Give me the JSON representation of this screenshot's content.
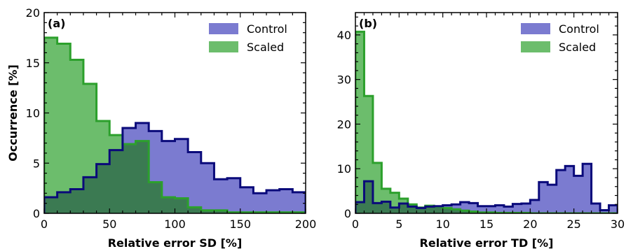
{
  "colors": {
    "control_fill": "#7b7bd0",
    "control_line": "#0a0a7a",
    "scaled_fill": "#6cbd6c",
    "scaled_line": "#2ca02c",
    "overlap_fill": "#3b7a52"
  },
  "chart_data": [
    {
      "type": "histogram",
      "panel": "(a)",
      "title": "",
      "xlabel": "Relative error SD [%]",
      "ylabel": "Occurrence [%]",
      "xlim": [
        0,
        200
      ],
      "ylim": [
        0,
        20
      ],
      "xticks": [
        0,
        50,
        100,
        150,
        200
      ],
      "yticks": [
        0,
        5,
        10,
        15,
        20
      ],
      "legend_position": "top-right",
      "bin_edges": [
        0,
        10,
        20,
        30,
        40,
        50,
        60,
        70,
        80,
        90,
        100,
        110,
        120,
        130,
        140,
        150,
        160,
        170,
        180,
        190,
        200
      ],
      "series": [
        {
          "name": "Control",
          "values": [
            1.6,
            2.1,
            2.4,
            3.6,
            4.9,
            6.3,
            8.5,
            9.0,
            8.2,
            7.2,
            7.4,
            6.1,
            5.0,
            3.4,
            3.5,
            2.6,
            2.0,
            2.3,
            2.4,
            2.1
          ]
        },
        {
          "name": "Scaled",
          "values": [
            17.5,
            16.9,
            15.3,
            12.9,
            9.2,
            7.8,
            6.9,
            7.2,
            3.1,
            1.6,
            1.5,
            0.6,
            0.3,
            0.3,
            0.1,
            0.1,
            0.1,
            0.1,
            0.1,
            0.1
          ]
        }
      ]
    },
    {
      "type": "histogram",
      "panel": "(b)",
      "title": "",
      "xlabel": "Relative error TD [%]",
      "ylabel": "",
      "xlim": [
        0,
        30
      ],
      "ylim": [
        0,
        45
      ],
      "xticks": [
        0,
        5,
        10,
        15,
        20,
        25,
        30
      ],
      "yticks": [
        0,
        10,
        20,
        30,
        40
      ],
      "legend_position": "top-right",
      "bin_edges": [
        0,
        1,
        2,
        3,
        4,
        5,
        6,
        7,
        8,
        9,
        10,
        11,
        12,
        13,
        14,
        15,
        16,
        17,
        18,
        19,
        20,
        21,
        22,
        23,
        24,
        25,
        26,
        27,
        28,
        29,
        30
      ],
      "series": [
        {
          "name": "Control",
          "values": [
            2.5,
            7.2,
            2.3,
            2.6,
            1.3,
            2.2,
            1.5,
            1.2,
            1.5,
            1.6,
            1.8,
            2.0,
            2.5,
            2.3,
            1.6,
            1.6,
            1.8,
            1.5,
            2.1,
            2.2,
            3.0,
            7.0,
            6.4,
            9.7,
            10.6,
            8.4,
            11.1,
            2.2,
            0.7,
            1.8
          ]
        },
        {
          "name": "Scaled",
          "values": [
            40.7,
            26.3,
            11.3,
            5.5,
            4.6,
            3.3,
            2.0,
            1.3,
            1.7,
            1.5,
            1.2,
            0.9,
            0.6,
            0.4,
            0.2,
            0.2,
            0.1,
            0.1,
            0.1,
            0.1,
            0.0,
            0.0,
            0.0,
            0.0,
            0.0,
            0.0,
            0.0,
            0.0,
            0.0,
            0.0
          ]
        }
      ]
    }
  ]
}
